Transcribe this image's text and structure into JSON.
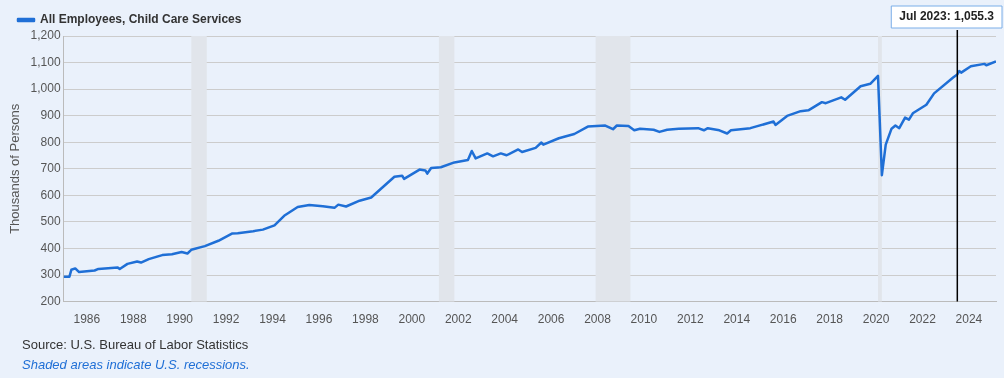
{
  "chart_data": {
    "type": "line",
    "ylabel": "Thousands of Persons",
    "legend": "top left",
    "grid": "y",
    "marker": "none",
    "line_style": "solid",
    "xlim": [
      "1985-01",
      "2025-03"
    ],
    "xticks": [
      "1986",
      "1988",
      "1990",
      "1992",
      "1994",
      "1996",
      "1998",
      "2000",
      "2002",
      "2004",
      "2006",
      "2008",
      "2010",
      "2012",
      "2014",
      "2016",
      "2018",
      "2020",
      "2022",
      "2024"
    ],
    "ylim": [
      200,
      1200
    ],
    "yticks": [
      200,
      300,
      400,
      500,
      600,
      700,
      800,
      900,
      {
        "value": 1000,
        "label": "1,000"
      },
      {
        "value": 1100,
        "label": "1,100"
      },
      {
        "value": 1200,
        "label": "1,200"
      }
    ],
    "bands": [
      {
        "axis": "x",
        "from": "1990-07",
        "to": "1991-03",
        "color": "#e1e5eb"
      },
      {
        "axis": "x",
        "from": "2001-03",
        "to": "2001-11",
        "color": "#e1e5eb"
      },
      {
        "axis": "x",
        "from": "2007-12",
        "to": "2009-06",
        "color": "#e1e5eb"
      },
      {
        "axis": "x",
        "from": "2020-02",
        "to": "2020-04",
        "color": "#e1e5eb"
      }
    ],
    "ref_lines": [
      {
        "axis": "x",
        "value": "2023-07",
        "color": "#000000",
        "label": "Jul 2023: 1,055.3"
      }
    ],
    "annotations": [
      "Source: U.S. Bureau of Labor Statistics",
      "Shaded areas indicate U.S. recessions."
    ],
    "series": [
      {
        "name": "All Employees, Child Care Services",
        "color": "#1f6fd6",
        "x": [
          "1985-01",
          "1985-04",
          "1985-05",
          "1985-07",
          "1985-09",
          "1986-05",
          "1986-07",
          "1987-05",
          "1987-06",
          "1987-10",
          "1988-03",
          "1988-05",
          "1988-09",
          "1989-04",
          "1989-09",
          "1990-02",
          "1990-05",
          "1990-07",
          "1991-02",
          "1991-09",
          "1992-04",
          "1992-07",
          "1993-03",
          "1993-08",
          "1994-02",
          "1994-07",
          "1995-02",
          "1995-08",
          "1996-03",
          "1996-09",
          "1996-11",
          "1997-03",
          "1997-10",
          "1998-04",
          "1999-04",
          "1999-08",
          "1999-09",
          "2000-05",
          "2000-08",
          "2000-09",
          "2000-11",
          "2001-04",
          "2001-11",
          "2002-06",
          "2002-08",
          "2002-10",
          "2003-04",
          "2003-07",
          "2003-11",
          "2004-02",
          "2004-08",
          "2004-10",
          "2005-05",
          "2005-08",
          "2005-09",
          "2006-05",
          "2007-01",
          "2007-08",
          "2008-05",
          "2008-09",
          "2008-11",
          "2009-05",
          "2009-08",
          "2009-11",
          "2010-06",
          "2010-09",
          "2011-01",
          "2011-07",
          "2012-05",
          "2012-08",
          "2012-10",
          "2013-04",
          "2013-08",
          "2013-10",
          "2014-08",
          "2015-08",
          "2015-09",
          "2016-03",
          "2016-10",
          "2017-02",
          "2017-09",
          "2017-11",
          "2018-07",
          "2018-09",
          "2019-05",
          "2019-10",
          "2020-02",
          "2020-04",
          "2020-06",
          "2020-09",
          "2020-11",
          "2021-01",
          "2021-04",
          "2021-06",
          "2021-08",
          "2022-03",
          "2022-07",
          "2023-05",
          "2023-07",
          "2023-08",
          "2023-09",
          "2024-02",
          "2024-09",
          "2024-10",
          "2025-03"
        ],
        "values": [
          294,
          294,
          320,
          325,
          311,
          317,
          323,
          328,
          323,
          342,
          351,
          347,
          360,
          375,
          378,
          387,
          381,
          395,
          409,
          429,
          456,
          457,
          465,
          471,
          487,
          523,
          556,
          564,
          559,
          553,
          565,
          558,
          580,
          592,
          670,
          674,
          662,
          697,
          694,
          682,
          703,
          706,
          724,
          733,
          767,
          739,
          758,
          747,
          758,
          751,
          773,
          763,
          779,
          799,
          791,
          815,
          831,
          859,
          863,
          849,
          863,
          861,
          845,
          851,
          847,
          839,
          847,
          851,
          853,
          845,
          853,
          845,
          833,
          845,
          853,
          878,
          865,
          899,
          917,
          920,
          951,
          947,
          969,
          960,
          1011,
          1020,
          1050,
          676,
          791,
          851,
          863,
          853,
          893,
          885,
          909,
          941,
          984,
          1045,
          1055.3,
          1068,
          1062,
          1086,
          1095,
          1090,
          1104
        ]
      }
    ]
  }
}
